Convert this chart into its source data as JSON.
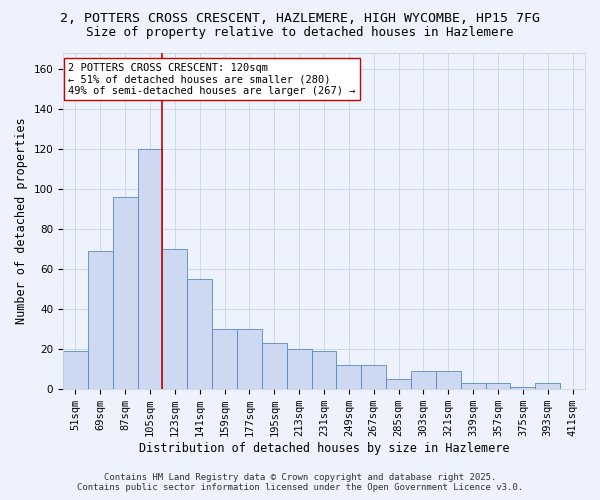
{
  "title_line1": "2, POTTERS CROSS CRESCENT, HAZLEMERE, HIGH WYCOMBE, HP15 7FG",
  "title_line2": "Size of property relative to detached houses in Hazlemere",
  "xlabel": "Distribution of detached houses by size in Hazlemere",
  "ylabel": "Number of detached properties",
  "categories": [
    "51sqm",
    "69sqm",
    "87sqm",
    "105sqm",
    "123sqm",
    "141sqm",
    "159sqm",
    "177sqm",
    "195sqm",
    "213sqm",
    "231sqm",
    "249sqm",
    "267sqm",
    "285sqm",
    "303sqm",
    "321sqm",
    "339sqm",
    "357sqm",
    "375sqm",
    "393sqm",
    "411sqm"
  ],
  "values": [
    19,
    69,
    96,
    120,
    70,
    55,
    30,
    30,
    23,
    20,
    19,
    12,
    12,
    5,
    9,
    9,
    3,
    3,
    1,
    3,
    0
  ],
  "bar_color": "#ccd9f0",
  "bar_edge_color": "#5588cc",
  "vline_x": 3.5,
  "vline_color": "#cc0000",
  "annotation_text": "2 POTTERS CROSS CRESCENT: 120sqm\n← 51% of detached houses are smaller (280)\n49% of semi-detached houses are larger (267) →",
  "annotation_box_color": "#ffffff",
  "annotation_box_edge": "#cc0000",
  "ylim": [
    0,
    168
  ],
  "yticks": [
    0,
    20,
    40,
    60,
    80,
    100,
    120,
    140,
    160
  ],
  "grid_color": "#c8d4e8",
  "footnote_line1": "Contains HM Land Registry data © Crown copyright and database right 2025.",
  "footnote_line2": "Contains public sector information licensed under the Open Government Licence v3.0.",
  "bg_color": "#eef2fc",
  "title_fontsize": 9.5,
  "subtitle_fontsize": 9,
  "axis_label_fontsize": 8.5,
  "tick_fontsize": 7.5,
  "annotation_fontsize": 7.5,
  "footnote_fontsize": 6.5
}
